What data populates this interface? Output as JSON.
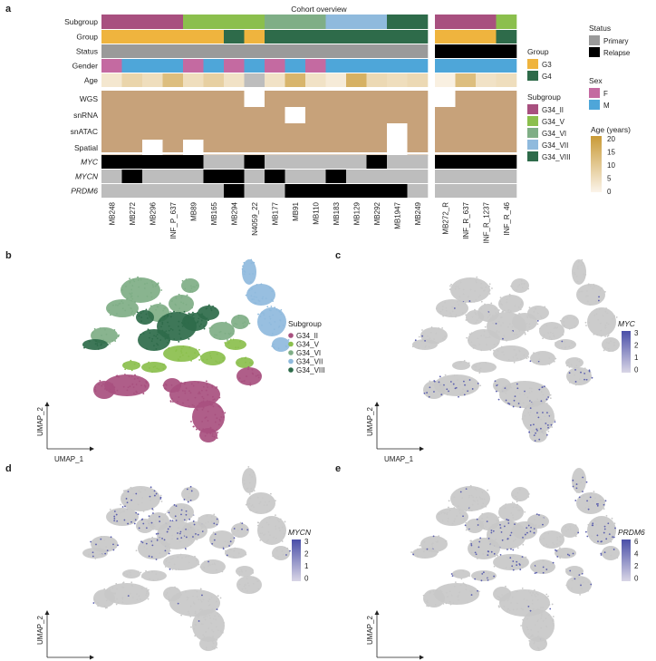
{
  "panel_letters": {
    "a": "a",
    "b": "b",
    "c": "c",
    "d": "d",
    "e": "e"
  },
  "heatmap": {
    "title": "Cohort overview",
    "row_labels": [
      "Subgroup",
      "Group",
      "Status",
      "Gender",
      "Age",
      "WGS",
      "snRNA",
      "snATAC",
      "Spatial",
      "MYC",
      "MYCN",
      "PRDM6"
    ],
    "samples_primary": [
      "MB248",
      "MB272",
      "MB296",
      "INF_P_637",
      "MB89",
      "MB165",
      "MB294",
      "N4059_22",
      "MB177",
      "MB91",
      "MB110",
      "MB183",
      "MB129",
      "MB292",
      "MB1947",
      "MB249"
    ],
    "samples_relapse": [
      "MB272_R",
      "INF_R_637",
      "INF_R_1237",
      "INF_R_46"
    ]
  },
  "colors": {
    "G34_II": "#a8507f",
    "G34_V": "#8bbf4d",
    "G34_VI": "#7fae86",
    "G34_VII": "#8fbadd",
    "G34_VIII": "#2e6b4a",
    "G3": "#efb43e",
    "G4": "#2e6b4a",
    "Primary": "#9a9a9a",
    "Relapse": "#000000",
    "F": "#c46aa1",
    "M": "#4ea6d9",
    "assay": "#c7a27a",
    "absent": "#ffffff",
    "amp": "#000000",
    "noamp": "#bdbdbd",
    "umap_grey": "#c8c8c8",
    "expr": "#5b5fae"
  },
  "legends": {
    "group": {
      "title": "Group",
      "items": [
        "G3",
        "G4"
      ]
    },
    "status": {
      "title": "Status",
      "items": [
        "Primary",
        "Relapse"
      ]
    },
    "sex": {
      "title": "Sex",
      "items": [
        "F",
        "M"
      ]
    },
    "subgroup": {
      "title": "Subgroup",
      "items": [
        "G34_II",
        "G34_V",
        "G34_VI",
        "G34_VII",
        "G34_VIII"
      ]
    },
    "age": {
      "title": "Age (years)",
      "ticks": [
        "20",
        "15",
        "10",
        "5",
        "0"
      ]
    }
  },
  "tracks": {
    "subgroup": [
      "G34_II",
      "G34_II",
      "G34_II",
      "G34_II",
      "G34_V",
      "G34_V",
      "G34_V",
      "G34_V",
      "G34_VI",
      "G34_VI",
      "G34_VI",
      "G34_VII",
      "G34_VII",
      "G34_VII",
      "G34_VIII",
      "G34_VIII",
      "G34_II",
      "G34_II",
      "G34_II",
      "G34_V"
    ],
    "group": [
      "G3",
      "G3",
      "G3",
      "G3",
      "G3",
      "G3",
      "G4",
      "G3",
      "G4",
      "G4",
      "G4",
      "G4",
      "G4",
      "G4",
      "G4",
      "G4",
      "G3",
      "G3",
      "G3",
      "G4"
    ],
    "status": [
      "Primary",
      "Primary",
      "Primary",
      "Primary",
      "Primary",
      "Primary",
      "Primary",
      "Primary",
      "Primary",
      "Primary",
      "Primary",
      "Primary",
      "Primary",
      "Primary",
      "Primary",
      "Primary",
      "Relapse",
      "Relapse",
      "Relapse",
      "Relapse"
    ],
    "gender": [
      "F",
      "M",
      "M",
      "M",
      "F",
      "M",
      "F",
      "M",
      "F",
      "M",
      "F",
      "M",
      "M",
      "M",
      "M",
      "M",
      "M",
      "M",
      "M",
      "M"
    ],
    "age": [
      3,
      7,
      5,
      12,
      5,
      8,
      4,
      null,
      4,
      14,
      4,
      2,
      15,
      6,
      5,
      6,
      1,
      12,
      4,
      5
    ],
    "wgs": [
      1,
      1,
      1,
      1,
      1,
      1,
      1,
      0,
      1,
      1,
      1,
      1,
      1,
      1,
      1,
      1,
      0,
      1,
      1,
      1
    ],
    "snrna": [
      1,
      1,
      1,
      1,
      1,
      1,
      1,
      1,
      1,
      0,
      1,
      1,
      1,
      1,
      1,
      1,
      1,
      1,
      1,
      1
    ],
    "snatac": [
      1,
      1,
      1,
      1,
      1,
      1,
      1,
      1,
      1,
      1,
      1,
      1,
      1,
      1,
      0,
      1,
      1,
      1,
      1,
      1
    ],
    "spatial": [
      1,
      1,
      0,
      1,
      0,
      1,
      1,
      1,
      1,
      1,
      1,
      1,
      1,
      1,
      0,
      1,
      1,
      1,
      1,
      1
    ],
    "myc": [
      1,
      1,
      1,
      1,
      1,
      0,
      0,
      1,
      0,
      0,
      0,
      0,
      0,
      1,
      0,
      0,
      1,
      1,
      1,
      1
    ],
    "mycn": [
      0,
      1,
      0,
      0,
      0,
      1,
      1,
      0,
      1,
      0,
      0,
      1,
      0,
      0,
      0,
      0,
      0,
      0,
      0,
      0
    ],
    "prdm6": [
      0,
      0,
      0,
      0,
      0,
      0,
      1,
      0,
      0,
      1,
      1,
      1,
      1,
      1,
      1,
      0,
      0,
      0,
      0,
      0
    ]
  },
  "umap": {
    "xlabel": "UMAP_1",
    "ylabel": "UMAP_2",
    "b": {
      "legend_title": "Subgroup"
    },
    "c": {
      "gene": "MYC",
      "ticks": [
        "3",
        "2",
        "1",
        "0"
      ],
      "vmax": 3
    },
    "d": {
      "gene": "MYCN",
      "ticks": [
        "3",
        "2",
        "1",
        "0"
      ],
      "vmax": 3
    },
    "e": {
      "gene": "PRDM6",
      "ticks": [
        "6",
        "4",
        "2",
        "0"
      ],
      "vmax": 6
    }
  }
}
